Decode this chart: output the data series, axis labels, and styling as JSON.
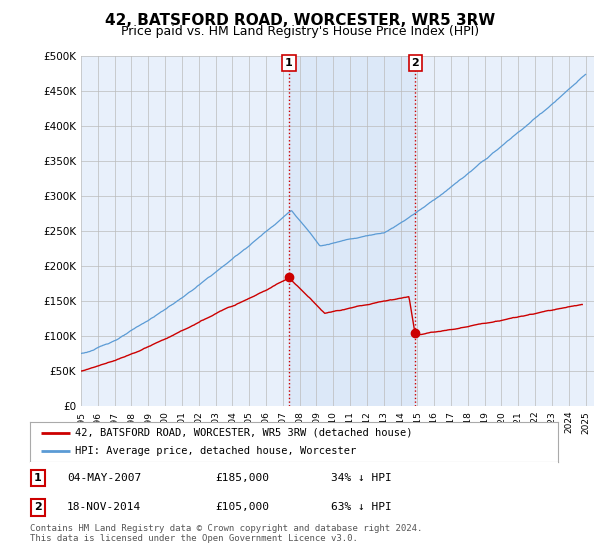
{
  "title": "42, BATSFORD ROAD, WORCESTER, WR5 3RW",
  "subtitle": "Price paid vs. HM Land Registry's House Price Index (HPI)",
  "ylim": [
    0,
    500000
  ],
  "yticks": [
    0,
    50000,
    100000,
    150000,
    200000,
    250000,
    300000,
    350000,
    400000,
    450000,
    500000
  ],
  "ytick_labels": [
    "£0",
    "£50K",
    "£100K",
    "£150K",
    "£200K",
    "£250K",
    "£300K",
    "£350K",
    "£400K",
    "£450K",
    "£500K"
  ],
  "hpi_color": "#5b9bd5",
  "price_color": "#cc0000",
  "sale1_year": 2007.37,
  "sale1_price": 185000,
  "sale2_year": 2014.88,
  "sale2_price": 105000,
  "sale1_date": "04-MAY-2007",
  "sale1_price_str": "£185,000",
  "sale1_pct": "34% ↓ HPI",
  "sale2_date": "18-NOV-2014",
  "sale2_price_str": "£105,000",
  "sale2_pct": "63% ↓ HPI",
  "legend_line1": "42, BATSFORD ROAD, WORCESTER, WR5 3RW (detached house)",
  "legend_line2": "HPI: Average price, detached house, Worcester",
  "footer": "Contains HM Land Registry data © Crown copyright and database right 2024.\nThis data is licensed under the Open Government Licence v3.0.",
  "bg_color": "#e8f0fb",
  "vspan_color": "#dce8f8",
  "vline_color": "#cc0000",
  "grid_color": "#bbbbbb",
  "title_fontsize": 11,
  "subtitle_fontsize": 9
}
